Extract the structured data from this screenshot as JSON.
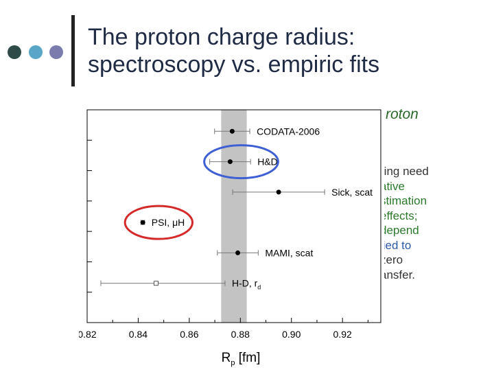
{
  "slide": {
    "title_line1": "The proton charge radius:",
    "title_line2": "spectroscopy vs. empiric fits",
    "bullet_dot_colors": [
      "#2e4b48",
      "#5aa6c9",
      "#7a7cae"
    ],
    "background_text": {
      "heading_fragment": "roton",
      "lines": [
        {
          "text": "ring need",
          "color": "#333333"
        },
        {
          "text": "ative",
          "color": "#2b7a2b"
        },
        {
          "text": "stimation",
          "color": "#2b7a2b"
        },
        {
          "text": "effects;",
          "color": "#2b7a2b"
        },
        {
          "text": "depend",
          "color": "#2b7a2b"
        },
        {
          "text": "lied to",
          "color": "#2b5aa8"
        },
        {
          "text": "zero",
          "color": "#333333"
        },
        {
          "text": "ansfer.",
          "color": "#333333"
        }
      ]
    }
  },
  "chart_data": {
    "type": "scatter",
    "xlabel": "Rp [fm]",
    "xlabel_main": "R",
    "xlabel_sub": "p",
    "xlabel_unit": " [fm]",
    "xlim": [
      0.82,
      0.935
    ],
    "xticks": [
      "0.82",
      "0.84",
      "0.86",
      "0.88",
      "0.90",
      "0.92"
    ],
    "band": {
      "low": 0.8725,
      "high": 0.8825,
      "color": "#c3c3c3"
    },
    "points": [
      {
        "label": "CODATA-2006",
        "sub": "",
        "x": 0.8768,
        "err": 0.0069,
        "marker": "filled",
        "circled": false
      },
      {
        "label": "H&D",
        "sub": "",
        "x": 0.876,
        "err": 0.008,
        "marker": "filled",
        "circled": true,
        "circle_color": "#3f5fd4"
      },
      {
        "label": "Sick, scat",
        "sub": "",
        "x": 0.895,
        "err": 0.018,
        "marker": "filled",
        "circled": false
      },
      {
        "label": "PSI, μH",
        "sub": "",
        "x": 0.8418,
        "err": 0.0007,
        "marker": "filled",
        "circled": true,
        "circle_color": "#d42a2a"
      },
      {
        "label": "MAMI, scat",
        "sub": "",
        "x": 0.879,
        "err": 0.008,
        "marker": "filled",
        "circled": false
      },
      {
        "label": "H-D, r",
        "sub": "d",
        "x": 0.847,
        "err": 0.027,
        "marker": "open",
        "circled": false
      }
    ]
  }
}
